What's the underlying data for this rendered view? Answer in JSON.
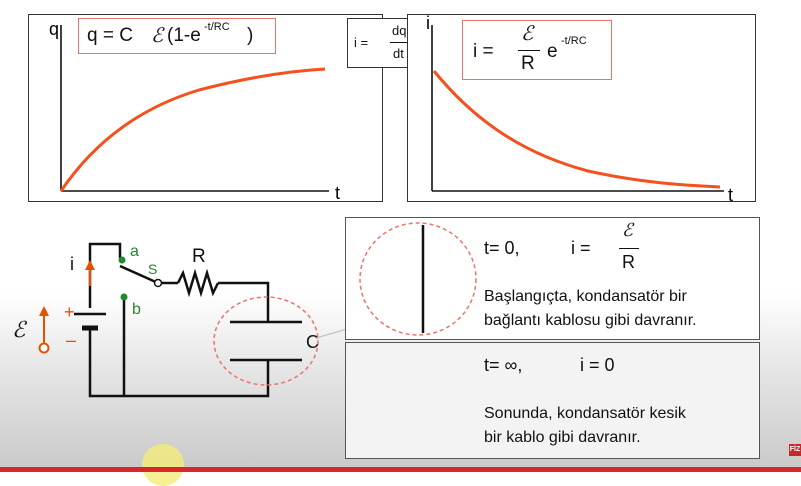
{
  "plot_q": {
    "y_label": "q",
    "x_label": "t",
    "formula": {
      "prefix": "q = C",
      "emf": "ℰ",
      "mid": "(1-e",
      "exp": "-t/RC",
      "suffix": ")"
    }
  },
  "plot_i": {
    "y_label": "i",
    "x_label": "t",
    "formula": {
      "lhs": "i =",
      "num": "ℰ",
      "den": "R",
      "base": "e",
      "exp": "-t/RC"
    }
  },
  "derivative": {
    "lhs": "i =",
    "num": "dq",
    "den": "dt"
  },
  "circuit": {
    "current_label": "i",
    "emf_label": "ℰ",
    "plus": "+",
    "minus": "–",
    "switch_a": "a",
    "switch_s": "S",
    "switch_b": "b",
    "resistor_label": "R",
    "capacitor_label": "C"
  },
  "info1": {
    "t_label": "t= 0,",
    "i_lhs": "i =",
    "num": "ℰ",
    "den": "R",
    "line1": "Başlangıçta, kondansatör bir",
    "line2": "bağlantı kablosu gibi davranır."
  },
  "info2": {
    "t_label": "t= ∞,",
    "i_eq": "i = 0",
    "line1": "Sonunda, kondansatör kesik",
    "line2": "bir kablo gibi davranır."
  },
  "logo": {
    "text": "FİZ"
  },
  "colors": {
    "curve": "#f4511e",
    "accent": "#e8756a",
    "wire": "#111111",
    "switch_dot": "#1e8a2a",
    "emf": "#e65100"
  }
}
